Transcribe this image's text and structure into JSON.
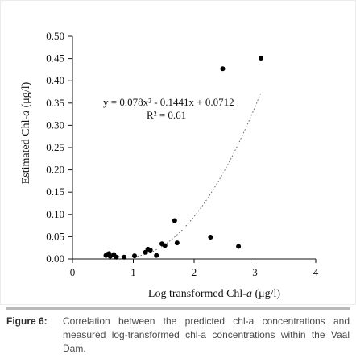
{
  "chart_data": {
    "type": "scatter",
    "xlabel_prefix": "Log transformed Chl-",
    "xlabel_italic": "a",
    "xlabel_suffix": " (μg/l)",
    "ylabel_prefix": "Estimated Chl-",
    "ylabel_italic": "a",
    "ylabel_suffix": " (μg/l)",
    "xlim": [
      0,
      4
    ],
    "ylim": [
      0,
      0.5
    ],
    "xticks": [
      "0",
      "1",
      "2",
      "3",
      "4"
    ],
    "yticks": [
      "0.00",
      "0.05",
      "0.10",
      "0.15",
      "0.20",
      "0.25",
      "0.30",
      "0.35",
      "0.40",
      "0.45",
      "0.50"
    ],
    "points": [
      {
        "x": 0.55,
        "y": 0.008
      },
      {
        "x": 0.6,
        "y": 0.012
      },
      {
        "x": 0.62,
        "y": 0.006
      },
      {
        "x": 0.68,
        "y": 0.01
      },
      {
        "x": 0.72,
        "y": 0.004
      },
      {
        "x": 0.85,
        "y": 0.004
      },
      {
        "x": 1.02,
        "y": 0.007
      },
      {
        "x": 1.2,
        "y": 0.015
      },
      {
        "x": 1.24,
        "y": 0.022
      },
      {
        "x": 1.28,
        "y": 0.02
      },
      {
        "x": 1.38,
        "y": 0.008
      },
      {
        "x": 1.47,
        "y": 0.034
      },
      {
        "x": 1.52,
        "y": 0.03
      },
      {
        "x": 1.68,
        "y": 0.086
      },
      {
        "x": 1.72,
        "y": 0.036
      },
      {
        "x": 2.27,
        "y": 0.049
      },
      {
        "x": 2.47,
        "y": 0.427
      },
      {
        "x": 2.73,
        "y": 0.028
      },
      {
        "x": 3.1,
        "y": 0.451
      }
    ],
    "trendline": {
      "type": "polynomial",
      "style": "dotted",
      "a": 0.078,
      "b": -0.1441,
      "c": 0.0712,
      "x_range": [
        0.55,
        3.1
      ],
      "equation_text": "y = 0.078x² - 0.1441x + 0.0712",
      "r2_text": "R² = 0.61"
    },
    "grid": false,
    "legend": "none"
  },
  "caption": {
    "label": "Figure 6:",
    "text": "Correlation between the predicted chl-a concentrations and measured log-transformed chl-a concentrations within the Vaal Dam."
  }
}
